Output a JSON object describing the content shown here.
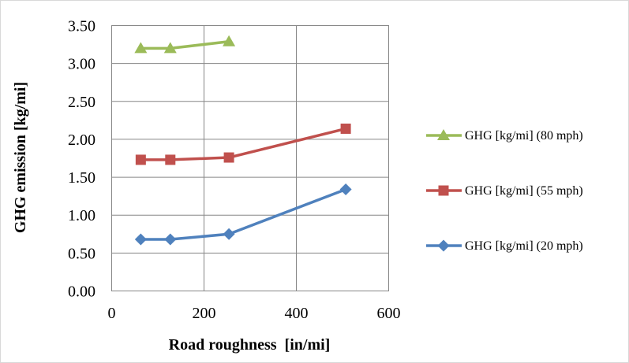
{
  "chart_data": {
    "type": "line",
    "xlabel": "Road roughness  [in/mi]",
    "ylabel": "GHG emission [kg/mi]",
    "xlim": [
      0,
      600
    ],
    "ylim": [
      0,
      3.5
    ],
    "xticks": [
      0,
      200,
      400,
      600
    ],
    "xtick_labels": [
      "0",
      "200",
      "400",
      "600"
    ],
    "yticks": [
      0,
      0.5,
      1.0,
      1.5,
      2.0,
      2.5,
      3.0,
      3.5
    ],
    "ytick_labels": [
      "0.00",
      "0.50",
      "1.00",
      "1.50",
      "2.00",
      "2.50",
      "3.00",
      "3.50"
    ],
    "grid": true,
    "legend_position": "right",
    "series": [
      {
        "name": "GHG [kg/mi] (80 mph)",
        "color": "#9bbb59",
        "marker": "triangle",
        "x": [
          63,
          127,
          254
        ],
        "y": [
          3.2,
          3.2,
          3.29
        ]
      },
      {
        "name": "GHG [kg/mi] (55 mph)",
        "color": "#c0504d",
        "marker": "square",
        "x": [
          63,
          127,
          254,
          507
        ],
        "y": [
          1.73,
          1.73,
          1.76,
          2.14
        ]
      },
      {
        "name": "GHG [kg/mi] (20 mph)",
        "color": "#4f81bd",
        "marker": "diamond",
        "x": [
          63,
          127,
          254,
          507
        ],
        "y": [
          0.68,
          0.68,
          0.75,
          1.34
        ]
      }
    ]
  }
}
